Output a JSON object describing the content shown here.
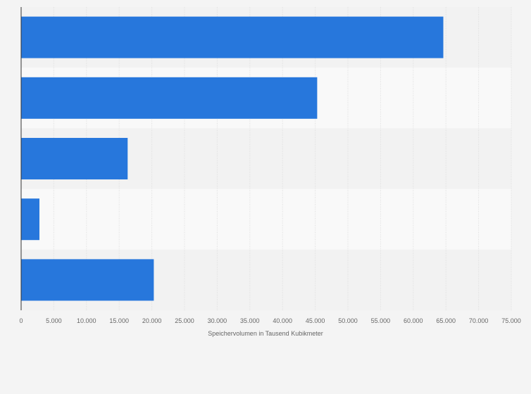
{
  "chart_data": {
    "type": "bar",
    "orientation": "horizontal",
    "title": "",
    "xlabel": "Speichervolumen in Tausend Kubikmeter",
    "ylabel": "",
    "xlim": [
      0,
      75000
    ],
    "ticks": [
      {
        "value": 0,
        "label": "0"
      },
      {
        "value": 5000,
        "label": "5.000"
      },
      {
        "value": 10000,
        "label": "10.000"
      },
      {
        "value": 15000,
        "label": "15.000"
      },
      {
        "value": 20000,
        "label": "20.000"
      },
      {
        "value": 25000,
        "label": "25.000"
      },
      {
        "value": 30000,
        "label": "30.000"
      },
      {
        "value": 35000,
        "label": "35.000"
      },
      {
        "value": 40000,
        "label": "40.000"
      },
      {
        "value": 45000,
        "label": "45.000"
      },
      {
        "value": 50000,
        "label": "50.000"
      },
      {
        "value": 55000,
        "label": "55.000"
      },
      {
        "value": 60000,
        "label": "60.000"
      },
      {
        "value": 65000,
        "label": "65.000"
      },
      {
        "value": 70000,
        "label": "70.000"
      },
      {
        "value": 75000,
        "label": "75.000"
      }
    ],
    "categories": [
      "",
      "",
      "",
      "",
      ""
    ],
    "values": [
      64600,
      45300,
      16300,
      2800,
      20300
    ],
    "grid": true,
    "legend": "none",
    "colors": {
      "bar": "#2777dc",
      "band_dark": "#f2f2f2",
      "band_light": "#f9f9f9",
      "grid": "#dedede",
      "axis": "#333333",
      "tick_text": "#666666",
      "page_background": "#f4f4f4"
    }
  }
}
